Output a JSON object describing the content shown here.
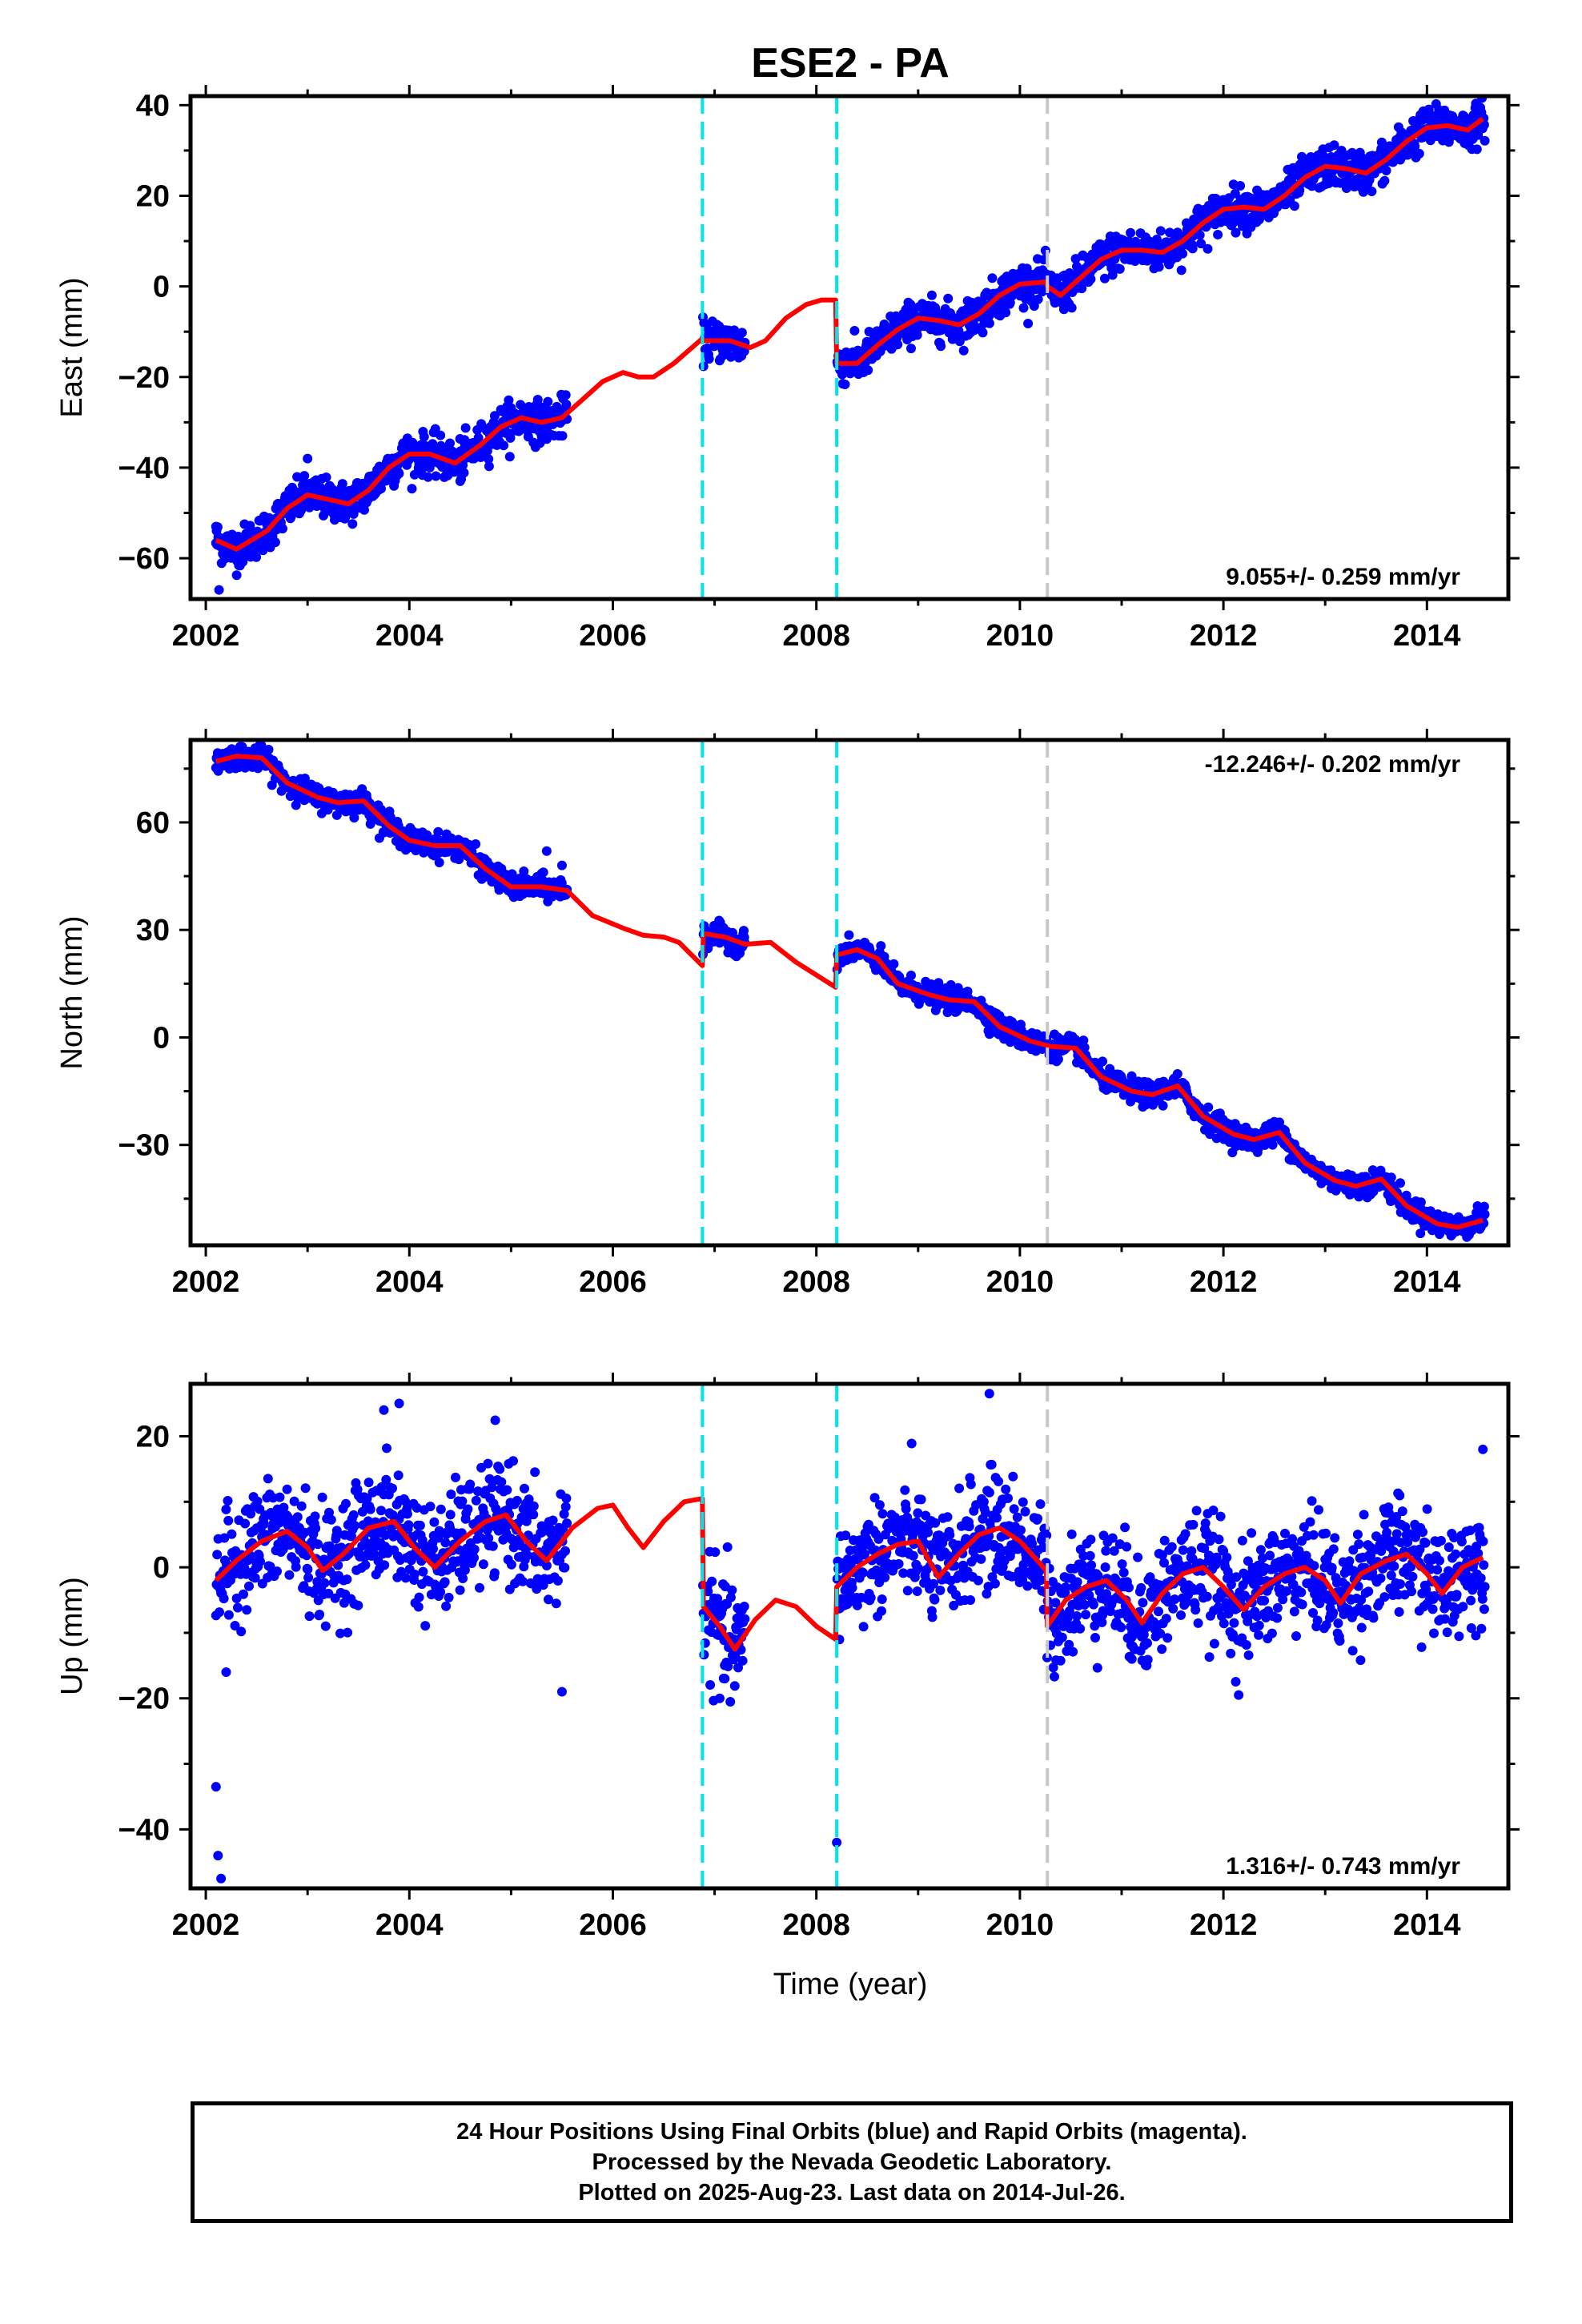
{
  "chart_data": {
    "title": "ESE2 - PA",
    "type": "scatter",
    "xlabel": "Time (year)",
    "xlim": [
      2001.85,
      2014.8
    ],
    "xticks": [
      2002,
      2004,
      2006,
      2008,
      2010,
      2012,
      2014
    ],
    "xtick_labels": [
      "2002",
      "2004",
      "2006",
      "2008",
      "2010",
      "2012",
      "2014"
    ],
    "colors": {
      "observations": "#0000ff",
      "model": "#ff0000",
      "offset_equipment": "#00e5ee",
      "offset_other": "#c8c8c8"
    },
    "offset_lines": [
      {
        "year": 2006.88,
        "color": "#00e5ee",
        "style": "dashed"
      },
      {
        "year": 2008.2,
        "color": "#00e5ee",
        "style": "dashed"
      },
      {
        "year": 2010.27,
        "color": "#c8c8c8",
        "style": "dashed"
      }
    ],
    "panels": [
      {
        "name": "east",
        "ylabel": "East (mm)",
        "ylim": [
          -69,
          42
        ],
        "yticks": [
          -60,
          -40,
          -20,
          0,
          20,
          40
        ],
        "ytick_labels": [
          "−60",
          "−40",
          "−20",
          "0",
          "20",
          "40"
        ],
        "rate_text": "9.055+/- 0.259 mm/yr",
        "rate_position": "bottom-right",
        "model": [
          [
            2002.1,
            -56
          ],
          [
            2002.3,
            -58
          ],
          [
            2002.6,
            -54
          ],
          [
            2002.8,
            -49
          ],
          [
            2003.0,
            -46
          ],
          [
            2003.2,
            -47
          ],
          [
            2003.4,
            -48
          ],
          [
            2003.6,
            -45
          ],
          [
            2003.8,
            -40
          ],
          [
            2004.0,
            -37
          ],
          [
            2004.2,
            -37
          ],
          [
            2004.45,
            -39
          ],
          [
            2004.7,
            -35
          ],
          [
            2004.9,
            -31
          ],
          [
            2005.1,
            -29
          ],
          [
            2005.3,
            -30
          ],
          [
            2005.5,
            -29
          ],
          [
            2005.7,
            -25
          ],
          [
            2005.9,
            -21
          ],
          [
            2006.1,
            -19
          ],
          [
            2006.25,
            -20
          ],
          [
            2006.4,
            -20
          ],
          [
            2006.6,
            -17
          ],
          [
            2006.88,
            -11.5
          ],
          [
            2006.89,
            -12
          ],
          [
            2007.0,
            -12
          ],
          [
            2007.15,
            -12
          ],
          [
            2007.35,
            -13.5
          ],
          [
            2007.5,
            -12
          ],
          [
            2007.7,
            -7
          ],
          [
            2007.9,
            -4
          ],
          [
            2008.05,
            -3
          ],
          [
            2008.19,
            -3
          ],
          [
            2008.2,
            -17
          ],
          [
            2008.4,
            -17
          ],
          [
            2008.6,
            -13
          ],
          [
            2008.8,
            -9.5
          ],
          [
            2009.0,
            -7
          ],
          [
            2009.2,
            -7.5
          ],
          [
            2009.4,
            -8.5
          ],
          [
            2009.6,
            -6
          ],
          [
            2009.8,
            -2
          ],
          [
            2010.0,
            0.5
          ],
          [
            2010.26,
            1
          ],
          [
            2010.27,
            0
          ],
          [
            2010.4,
            -2
          ],
          [
            2010.6,
            2
          ],
          [
            2010.8,
            6
          ],
          [
            2011.0,
            8
          ],
          [
            2011.2,
            8
          ],
          [
            2011.4,
            7.5
          ],
          [
            2011.6,
            10
          ],
          [
            2011.8,
            14
          ],
          [
            2012.0,
            17
          ],
          [
            2012.2,
            17.5
          ],
          [
            2012.4,
            17
          ],
          [
            2012.6,
            20
          ],
          [
            2012.8,
            24
          ],
          [
            2013.0,
            26.5
          ],
          [
            2013.2,
            26
          ],
          [
            2013.4,
            25
          ],
          [
            2013.6,
            28
          ],
          [
            2013.8,
            32
          ],
          [
            2014.0,
            35
          ],
          [
            2014.2,
            35.5
          ],
          [
            2014.4,
            34.5
          ],
          [
            2014.55,
            37
          ]
        ],
        "gaps": [
          [
            2005.55,
            2006.88
          ],
          [
            2007.3,
            2008.2
          ]
        ],
        "noise": 2.2,
        "outliers": [
          [
            2002.13,
            -67
          ],
          [
            2002.1,
            -53
          ],
          [
            2003.0,
            -38
          ],
          [
            2004.5,
            -43
          ]
        ]
      },
      {
        "name": "north",
        "ylabel": "North (mm)",
        "ylim": [
          -58,
          83
        ],
        "yticks": [
          -30,
          0,
          30,
          60
        ],
        "ytick_labels": [
          "−30",
          "0",
          "30",
          "60"
        ],
        "rate_text": "-12.246+/- 0.202 mm/yr",
        "rate_position": "top-right",
        "model": [
          [
            2002.1,
            77
          ],
          [
            2002.3,
            78.5
          ],
          [
            2002.55,
            78
          ],
          [
            2002.8,
            71
          ],
          [
            2003.1,
            67
          ],
          [
            2003.3,
            65.5
          ],
          [
            2003.55,
            66
          ],
          [
            2003.8,
            59
          ],
          [
            2004.0,
            55
          ],
          [
            2004.25,
            53.5
          ],
          [
            2004.5,
            53.5
          ],
          [
            2004.75,
            47
          ],
          [
            2005.0,
            42
          ],
          [
            2005.3,
            42
          ],
          [
            2005.55,
            41
          ],
          [
            2005.8,
            34
          ],
          [
            2006.1,
            30.5
          ],
          [
            2006.3,
            28.5
          ],
          [
            2006.5,
            28
          ],
          [
            2006.65,
            26.5
          ],
          [
            2006.88,
            20
          ],
          [
            2006.89,
            29
          ],
          [
            2007.1,
            28
          ],
          [
            2007.3,
            26
          ],
          [
            2007.55,
            26.5
          ],
          [
            2007.8,
            21
          ],
          [
            2008.19,
            14
          ],
          [
            2008.2,
            23
          ],
          [
            2008.4,
            24.5
          ],
          [
            2008.6,
            22
          ],
          [
            2008.8,
            15
          ],
          [
            2009.1,
            12
          ],
          [
            2009.3,
            10.5
          ],
          [
            2009.55,
            10
          ],
          [
            2009.8,
            3
          ],
          [
            2010.1,
            -1
          ],
          [
            2010.3,
            -2.5
          ],
          [
            2010.55,
            -3
          ],
          [
            2010.8,
            -11
          ],
          [
            2011.1,
            -15
          ],
          [
            2011.3,
            -16
          ],
          [
            2011.55,
            -13.5
          ],
          [
            2011.8,
            -22
          ],
          [
            2012.1,
            -27
          ],
          [
            2012.3,
            -28.5
          ],
          [
            2012.55,
            -26.5
          ],
          [
            2012.8,
            -35
          ],
          [
            2013.1,
            -40
          ],
          [
            2013.3,
            -41.5
          ],
          [
            2013.55,
            -39.5
          ],
          [
            2013.8,
            -47
          ],
          [
            2014.1,
            -52
          ],
          [
            2014.3,
            -53
          ],
          [
            2014.55,
            -51
          ]
        ],
        "gaps": [
          [
            2005.55,
            2006.88
          ],
          [
            2007.3,
            2008.2
          ]
        ],
        "noise": 1.6,
        "outliers": [
          [
            2005.35,
            52
          ],
          [
            2005.5,
            48
          ]
        ]
      },
      {
        "name": "up",
        "ylabel": "Up (mm)",
        "ylim": [
          -49,
          28
        ],
        "yticks": [
          -40,
          -20,
          0,
          20
        ],
        "ytick_labels": [
          "−40",
          "−20",
          "0",
          "20"
        ],
        "rate_text": "1.316+/- 0.743 mm/yr",
        "rate_position": "bottom-right",
        "model": [
          [
            2002.1,
            -2
          ],
          [
            2002.3,
            1
          ],
          [
            2002.55,
            4
          ],
          [
            2002.8,
            5.5
          ],
          [
            2003.0,
            3
          ],
          [
            2003.15,
            -0.5
          ],
          [
            2003.35,
            2
          ],
          [
            2003.6,
            6
          ],
          [
            2003.85,
            7
          ],
          [
            2004.05,
            3
          ],
          [
            2004.25,
            0
          ],
          [
            2004.5,
            4
          ],
          [
            2004.75,
            7
          ],
          [
            2004.95,
            8
          ],
          [
            2005.15,
            4
          ],
          [
            2005.35,
            1
          ],
          [
            2005.6,
            6
          ],
          [
            2005.85,
            9
          ],
          [
            2006.0,
            9.5
          ],
          [
            2006.15,
            6
          ],
          [
            2006.3,
            3
          ],
          [
            2006.5,
            7
          ],
          [
            2006.7,
            10
          ],
          [
            2006.88,
            10.5
          ],
          [
            2006.89,
            -6
          ],
          [
            2007.05,
            -9
          ],
          [
            2007.2,
            -12.5
          ],
          [
            2007.4,
            -8
          ],
          [
            2007.6,
            -5
          ],
          [
            2007.8,
            -6
          ],
          [
            2008.0,
            -9
          ],
          [
            2008.19,
            -11
          ],
          [
            2008.2,
            -3
          ],
          [
            2008.4,
            0
          ],
          [
            2008.6,
            2
          ],
          [
            2008.8,
            3.5
          ],
          [
            2009.0,
            4
          ],
          [
            2009.2,
            -1.5
          ],
          [
            2009.4,
            2
          ],
          [
            2009.6,
            5
          ],
          [
            2009.8,
            6
          ],
          [
            2010.0,
            4
          ],
          [
            2010.26,
            -0.5
          ],
          [
            2010.27,
            -9
          ],
          [
            2010.45,
            -5
          ],
          [
            2010.65,
            -3
          ],
          [
            2010.85,
            -2
          ],
          [
            2011.05,
            -5
          ],
          [
            2011.2,
            -8.5
          ],
          [
            2011.4,
            -4
          ],
          [
            2011.6,
            -1
          ],
          [
            2011.8,
            0
          ],
          [
            2012.0,
            -3
          ],
          [
            2012.2,
            -6.5
          ],
          [
            2012.4,
            -3
          ],
          [
            2012.6,
            -1
          ],
          [
            2012.8,
            0
          ],
          [
            2013.0,
            -2
          ],
          [
            2013.15,
            -5.5
          ],
          [
            2013.35,
            -1
          ],
          [
            2013.6,
            1
          ],
          [
            2013.8,
            2
          ],
          [
            2014.0,
            -1
          ],
          [
            2014.15,
            -4
          ],
          [
            2014.35,
            0
          ],
          [
            2014.55,
            1.5
          ]
        ],
        "gaps": [
          [
            2005.55,
            2006.88
          ],
          [
            2007.3,
            2008.2
          ]
        ],
        "noise": 4.2,
        "outliers": [
          [
            2002.1,
            -33.5
          ],
          [
            2002.12,
            -44
          ],
          [
            2002.15,
            -47.5
          ],
          [
            2008.2,
            -42
          ],
          [
            2005.5,
            -19
          ],
          [
            2009.7,
            26.5
          ],
          [
            2012.15,
            -19.5
          ],
          [
            2003.75,
            24
          ],
          [
            2003.9,
            25
          ],
          [
            2002.2,
            -16
          ],
          [
            2007.05,
            -20
          ],
          [
            2007.1,
            -17
          ],
          [
            2011.1,
            -14
          ],
          [
            2014.55,
            18
          ]
        ]
      }
    ]
  },
  "footer": {
    "line1": "24 Hour Positions Using Final Orbits (blue) and Rapid Orbits (magenta).",
    "line2": "Processed by the Nevada Geodetic Laboratory.",
    "line3": "Plotted on 2025-Aug-23. Last data on 2014-Jul-26."
  }
}
